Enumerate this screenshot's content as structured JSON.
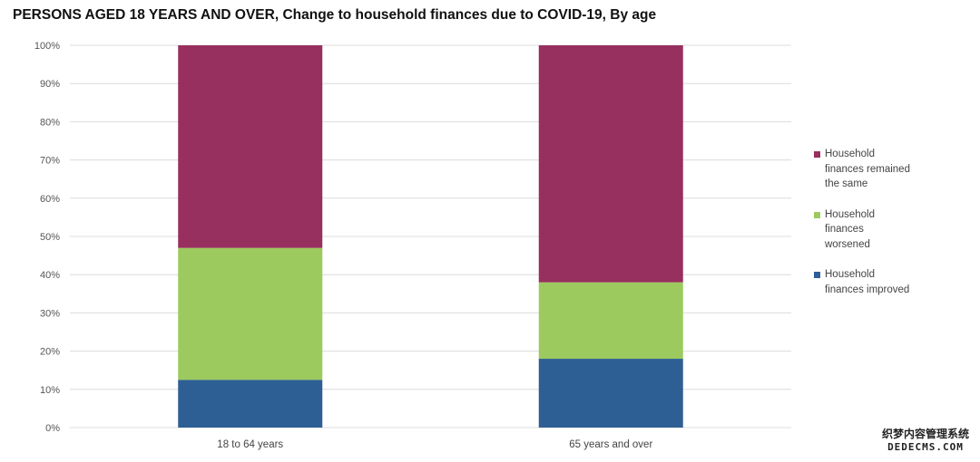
{
  "chart_data": {
    "type": "bar",
    "stacked": true,
    "title": "PERSONS AGED 18 YEARS AND OVER, Change to household finances due to COVID-19, By age",
    "categories": [
      "18 to 64 years",
      "65 years and over"
    ],
    "series": [
      {
        "name": "Household finances improved",
        "values": [
          12.5,
          18
        ],
        "color": "#2e5f94"
      },
      {
        "name": "Household finances worsened",
        "values": [
          34.5,
          20
        ],
        "color": "#9cca5f"
      },
      {
        "name": "Household finances remained the same",
        "values": [
          53,
          62
        ],
        "color": "#97305e"
      }
    ],
    "ylim": [
      0,
      100
    ],
    "yticks": [
      "0%",
      "10%",
      "20%",
      "30%",
      "40%",
      "50%",
      "60%",
      "70%",
      "80%",
      "90%",
      "100%"
    ],
    "xlabel": "",
    "ylabel": "",
    "grid": true,
    "legend_position": "right",
    "legend": [
      {
        "lines": [
          "Household",
          "finances remained",
          "the same"
        ],
        "color": "#97305e"
      },
      {
        "lines": [
          "Household",
          "finances",
          "worsened"
        ],
        "color": "#9cca5f"
      },
      {
        "lines": [
          "Household",
          "finances improved"
        ],
        "color": "#2e5f94"
      }
    ]
  },
  "watermark": {
    "line1": "织梦内容管理系统",
    "line2": "DEDECMS.COM"
  }
}
